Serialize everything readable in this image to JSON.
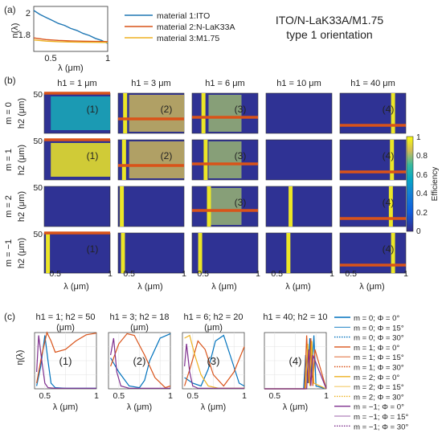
{
  "figure": {
    "title_line1": "ITO/N-LaK33A/M1.75",
    "title_line2": "type 1 orientation",
    "panel_a_label": "(a)",
    "panel_b_label": "(b)",
    "panel_c_label": "(c)"
  },
  "chart_data": [
    {
      "panel": "(a)",
      "type": "line",
      "xlabel": "λ (μm)",
      "ylabel": "n(λ)",
      "xlim": [
        0.4,
        1.0
      ],
      "ylim": [
        1.65,
        2.1
      ],
      "xticks": [
        "0.5",
        "1"
      ],
      "yticks": [
        "2",
        "1.8"
      ],
      "series": [
        {
          "name": "material 1:ITO",
          "color": "#1f77b4",
          "x": [
            0.4,
            0.45,
            0.5,
            0.55,
            0.6,
            0.65,
            0.7,
            0.75,
            0.8,
            0.85,
            0.9,
            0.95,
            1.0
          ],
          "y": [
            2.06,
            2.02,
            1.99,
            1.96,
            1.93,
            1.91,
            1.88,
            1.86,
            1.83,
            1.81,
            1.78,
            1.76,
            1.73
          ]
        },
        {
          "name": "material 2:N-LaK33A",
          "color": "#d95319",
          "x": [
            0.4,
            0.5,
            0.6,
            0.7,
            0.8,
            0.9,
            1.0
          ],
          "y": [
            1.785,
            1.768,
            1.76,
            1.755,
            1.752,
            1.75,
            1.748
          ]
        },
        {
          "name": "material 3:M1.75",
          "color": "#edb120",
          "x": [
            0.4,
            0.5,
            0.6,
            0.7,
            0.8,
            0.9,
            1.0
          ],
          "y": [
            1.765,
            1.753,
            1.747,
            1.744,
            1.742,
            1.741,
            1.74
          ]
        }
      ]
    },
    {
      "panel": "(b)",
      "type": "heatmap",
      "xlabel": "λ (μm)",
      "ylabel": "h2 (μm)",
      "xlim": [
        0.4,
        1.0
      ],
      "ylim": [
        0,
        50
      ],
      "xticks": [
        "0.5",
        "1"
      ],
      "yticks": [
        "50",
        "0"
      ],
      "colorbar_label": "Efficiency",
      "colorbar_ticks": [
        "1",
        "0.8",
        "0.6",
        "0.4",
        "0.2",
        "0"
      ],
      "column_titles": [
        "h1 = 1 μm",
        "h1 = 3 μm",
        "h1 = 6 μm",
        "h1 = 10 μm",
        "h1 = 40 μm"
      ],
      "row_titles": [
        "m = 0",
        "m = 1",
        "m = 2",
        "m = −1"
      ],
      "cells": [
        [
          {
            "h2": 50,
            "tag": "(1)"
          },
          {
            "h2": 18,
            "tag": "(2)"
          },
          {
            "h2": 20,
            "tag": "(3)"
          },
          null,
          {
            "h2": 10,
            "tag": "(4)"
          }
        ],
        [
          {
            "h2": 50,
            "tag": "(1)"
          },
          {
            "h2": 18,
            "tag": "(2)"
          },
          {
            "h2": 20,
            "tag": "(3)"
          },
          null,
          {
            "h2": 10,
            "tag": "(4)"
          }
        ],
        [
          null,
          null,
          {
            "h2": 20,
            "tag": "(3)"
          },
          null,
          {
            "h2": 10,
            "tag": "(4)"
          }
        ],
        [
          {
            "h2": 50,
            "tag": "(1)"
          },
          null,
          null,
          null,
          {
            "h2": 10,
            "tag": "(4)"
          }
        ]
      ]
    },
    {
      "panel": "(c)",
      "type": "line",
      "xlabel": "λ (μm)",
      "ylabel": "η(λ)",
      "xlim": [
        0.4,
        1.0
      ],
      "ylim": [
        0,
        1
      ],
      "xticks": [
        "0.5",
        "1"
      ],
      "subplot_titles": [
        {
          "line1": "h1 = 1; h2 = 50",
          "line2": "(μm)",
          "tag": "(1)"
        },
        {
          "line1": "h1 = 3; h2 = 18",
          "line2": "(μm)",
          "tag": "(2)"
        },
        {
          "line1": "h1 = 6; h2 = 20",
          "line2": "(μm)",
          "tag": "(3)"
        },
        {
          "line1": "h1 = 40; h2 = 10",
          "line2": "",
          "tag": "(4)"
        }
      ],
      "legend": [
        {
          "label": "m = 0; Φ = 0°",
          "color": "#0072bd",
          "dash": "solid"
        },
        {
          "label": "m = 0; Φ = 15°",
          "color": "#0072bd",
          "dash": "thin"
        },
        {
          "label": "m = 0; Φ = 30°",
          "color": "#0072bd",
          "dash": "dot"
        },
        {
          "label": "m = 1; Φ = 0°",
          "color": "#d95319",
          "dash": "solid"
        },
        {
          "label": "m = 1; Φ = 15°",
          "color": "#d95319",
          "dash": "thin"
        },
        {
          "label": "m = 1; Φ = 30°",
          "color": "#d95319",
          "dash": "dot"
        },
        {
          "label": "m = 2; Φ = 0°",
          "color": "#edb120",
          "dash": "solid"
        },
        {
          "label": "m = 2; Φ = 15°",
          "color": "#edb120",
          "dash": "thin"
        },
        {
          "label": "m = 2; Φ = 30°",
          "color": "#edb120",
          "dash": "dot"
        },
        {
          "label": "m = −1; Φ = 0°",
          "color": "#7e2f8e",
          "dash": "solid"
        },
        {
          "label": "m = −1; Φ = 15°",
          "color": "#7e2f8e",
          "dash": "thin"
        },
        {
          "label": "m = −1; Φ = 30°",
          "color": "#7e2f8e",
          "dash": "dot"
        }
      ],
      "subplots": [
        {
          "tag": "(1)",
          "series": [
            {
              "name": "m = 0",
              "color": "#0072bd",
              "x": [
                0.42,
                0.46,
                0.5,
                0.53,
                0.56,
                0.6,
                0.7,
                0.8,
                0.9,
                1.0
              ],
              "y": [
                0.05,
                0.4,
                0.95,
                0.5,
                0.1,
                0.02,
                0.01,
                0.01,
                0.01,
                0.01
              ]
            },
            {
              "name": "m = 1",
              "color": "#d95319",
              "x": [
                0.42,
                0.47,
                0.52,
                0.56,
                0.6,
                0.7,
                0.8,
                0.9,
                1.0
              ],
              "y": [
                0.1,
                0.6,
                1.0,
                0.85,
                0.65,
                0.7,
                0.85,
                0.96,
                0.99
              ]
            },
            {
              "name": "m = −1",
              "color": "#7e2f8e",
              "x": [
                0.42,
                0.44,
                0.47,
                0.5,
                0.53,
                0.6,
                1.0
              ],
              "y": [
                0.3,
                0.95,
                0.5,
                0.1,
                0.02,
                0.01,
                0.01
              ]
            }
          ]
        },
        {
          "tag": "(2)",
          "series": [
            {
              "name": "m = 0",
              "color": "#0072bd",
              "x": [
                0.42,
                0.5,
                0.6,
                0.7,
                0.75,
                0.8,
                0.9,
                1.0
              ],
              "y": [
                0.55,
                0.3,
                0.05,
                0.02,
                0.15,
                0.5,
                0.9,
                0.98
              ]
            },
            {
              "name": "m = 1",
              "color": "#d95319",
              "x": [
                0.42,
                0.5,
                0.58,
                0.65,
                0.75,
                0.85,
                0.95,
                1.0
              ],
              "y": [
                0.4,
                0.8,
                0.98,
                0.95,
                0.6,
                0.2,
                0.02,
                0.05
              ]
            },
            {
              "name": "m = −1",
              "color": "#7e2f8e",
              "x": [
                0.42,
                0.45,
                0.48,
                0.52,
                0.6,
                1.0
              ],
              "y": [
                0.6,
                0.9,
                0.3,
                0.05,
                0.01,
                0.01
              ]
            }
          ]
        },
        {
          "tag": "(3)",
          "series": [
            {
              "name": "m = 0",
              "color": "#0072bd",
              "x": [
                0.42,
                0.5,
                0.58,
                0.65,
                0.72,
                0.8,
                0.88,
                0.95,
                1.0
              ],
              "y": [
                0.2,
                0.1,
                0.05,
                0.35,
                0.85,
                0.95,
                0.5,
                0.1,
                0.05
              ]
            },
            {
              "name": "m = 1",
              "color": "#d95319",
              "x": [
                0.42,
                0.48,
                0.55,
                0.62,
                0.7,
                0.8,
                0.9,
                1.0
              ],
              "y": [
                0.05,
                0.4,
                0.85,
                0.7,
                0.25,
                0.05,
                0.3,
                0.75
              ]
            },
            {
              "name": "m = 2",
              "color": "#edb120",
              "x": [
                0.42,
                0.47,
                0.52,
                0.58,
                0.65,
                0.75,
                0.9,
                1.0
              ],
              "y": [
                0.9,
                0.95,
                0.6,
                0.25,
                0.05,
                0.01,
                0.01,
                0.01
              ]
            },
            {
              "name": "m = −1",
              "color": "#7e2f8e",
              "x": [
                0.42,
                0.44,
                0.47,
                0.5,
                0.55,
                1.0
              ],
              "y": [
                0.4,
                0.8,
                0.3,
                0.05,
                0.01,
                0.01
              ]
            }
          ]
        },
        {
          "tag": "(4)",
          "series": [
            {
              "name": "m = 0",
              "color": "#0072bd",
              "x": [
                0.4,
                0.78,
                0.8,
                0.82,
                0.84,
                0.86,
                0.88,
                0.9,
                1.0
              ],
              "y": [
                0.0,
                0.0,
                0.6,
                0.1,
                0.9,
                0.2,
                0.95,
                0.05,
                0.0
              ]
            },
            {
              "name": "m = 1",
              "color": "#d95319",
              "x": [
                0.4,
                0.79,
                0.81,
                0.83,
                0.85,
                0.87,
                0.89,
                1.0
              ],
              "y": [
                0.0,
                0.0,
                0.95,
                0.1,
                0.9,
                0.05,
                0.7,
                0.0
              ]
            },
            {
              "name": "m = 2",
              "color": "#edb120",
              "x": [
                0.4,
                0.8,
                0.82,
                0.84,
                0.86,
                0.88,
                1.0
              ],
              "y": [
                0.0,
                0.0,
                0.8,
                0.05,
                0.85,
                0.1,
                0.0
              ]
            },
            {
              "name": "m = −1",
              "color": "#7e2f8e",
              "x": [
                0.4,
                0.81,
                0.83,
                0.85,
                0.87,
                1.0
              ],
              "y": [
                0.0,
                0.0,
                0.7,
                0.05,
                0.6,
                0.0
              ]
            }
          ]
        }
      ]
    }
  ]
}
